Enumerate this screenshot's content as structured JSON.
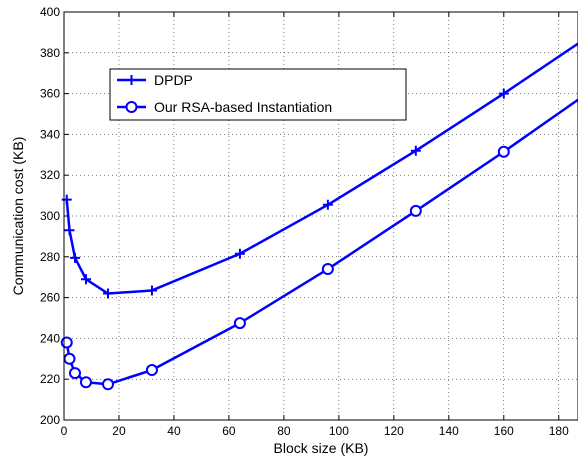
{
  "chart_data": {
    "type": "line",
    "title": "",
    "xlabel": "Block size (KB)",
    "ylabel": "Communication cost (KB)",
    "xlim": [
      0,
      187
    ],
    "ylim": [
      200,
      400
    ],
    "xticks": [
      0,
      20,
      40,
      60,
      80,
      100,
      120,
      140,
      160,
      180
    ],
    "yticks": [
      200,
      220,
      240,
      260,
      280,
      300,
      320,
      340,
      360,
      380,
      400
    ],
    "grid": true,
    "legend_position": "top-left",
    "series": [
      {
        "name": "DPDP",
        "marker": "plus",
        "color": "#0000ff",
        "x": [
          1,
          2,
          4,
          8,
          16,
          32,
          64,
          96,
          128,
          160,
          187
        ],
        "y": [
          308,
          293,
          279.5,
          269,
          262,
          263.5,
          281.5,
          305.5,
          332,
          360,
          384.5
        ]
      },
      {
        "name": "Our RSA-based Instantiation",
        "marker": "circle",
        "color": "#0000ff",
        "x": [
          1,
          2,
          4,
          8,
          16,
          32,
          64,
          96,
          128,
          160,
          187
        ],
        "y": [
          238,
          230,
          223,
          218.5,
          217.5,
          224.5,
          247.5,
          274,
          302.5,
          331.5,
          357
        ]
      }
    ]
  }
}
